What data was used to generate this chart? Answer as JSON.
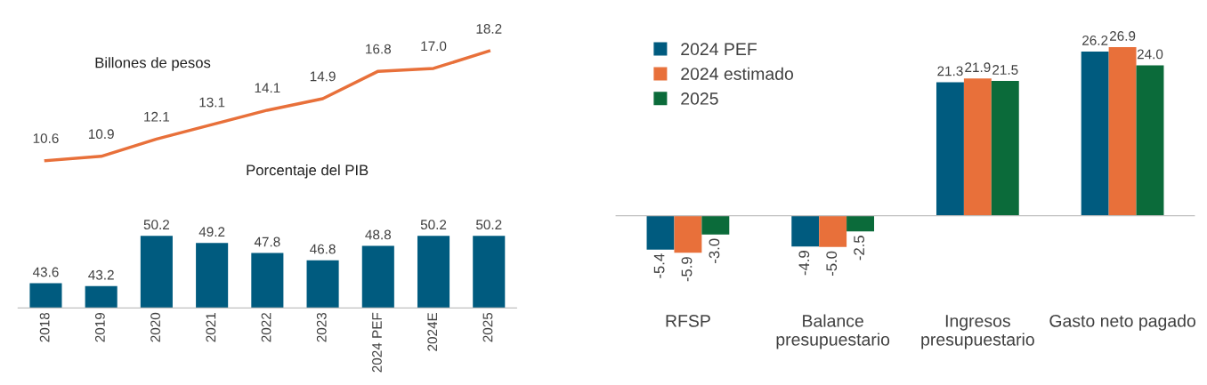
{
  "chart_data": [
    {
      "type": "line",
      "title": "Billones de pesos",
      "categories": [
        null,
        null,
        null,
        null,
        null,
        null,
        null,
        null,
        null
      ],
      "marker": "none",
      "series": [
        {
          "color": "#e8703a",
          "values": [
            10.6,
            10.9,
            12.1,
            13.1,
            14.1,
            14.9,
            16.8,
            17.0,
            18.2
          ],
          "value_labels": [
            "10.6",
            "10.9",
            "12.1",
            "13.1",
            "14.1",
            "14.9",
            "16.8",
            "17.0",
            "18.2"
          ]
        }
      ]
    },
    {
      "type": "bar",
      "title": "Porcentaje del PIB",
      "categories": [
        "2018",
        "2019",
        "2020",
        "2021",
        "2022",
        "2023",
        "2024 PEF",
        "2024E",
        "2025"
      ],
      "series": [
        {
          "color": "#005b7f",
          "values": [
            43.6,
            43.2,
            50.2,
            49.2,
            47.8,
            46.8,
            48.8,
            50.2,
            50.2
          ],
          "value_labels": [
            "43.6",
            "43.2",
            "50.2",
            "49.2",
            "47.8",
            "46.8",
            "48.8",
            "50.2",
            "50.2"
          ]
        }
      ]
    },
    {
      "type": "bar",
      "categories": [
        "RFSP",
        "Balance\npresupuestario",
        "Ingresos\npresupuestario",
        "Gasto neto pagado"
      ],
      "legend": "top left",
      "series": [
        {
          "name": "2024 PEF",
          "color": "#005b7f",
          "values": [
            -5.4,
            -4.9,
            21.3,
            26.2
          ],
          "value_labels": [
            "-5.4",
            "-4.9",
            "21.3",
            "26.2"
          ]
        },
        {
          "name": "2024 estimado",
          "color": "#e8703a",
          "values": [
            -5.9,
            -5.0,
            21.9,
            26.9
          ],
          "value_labels": [
            "-5.9",
            "-5.0",
            "21.9",
            "26.9"
          ]
        },
        {
          "name": "2025",
          "color": "#0b6b3a",
          "values": [
            -3.0,
            -2.5,
            21.5,
            24.0
          ],
          "value_labels": [
            "-3.0",
            "-2.5",
            "21.5",
            "24.0"
          ]
        }
      ]
    }
  ]
}
